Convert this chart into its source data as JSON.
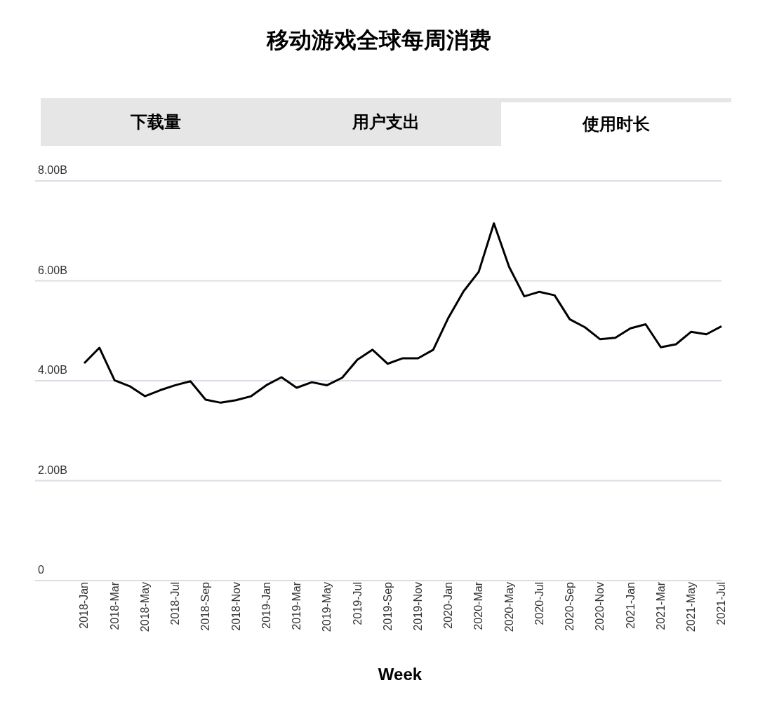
{
  "chart_data": {
    "type": "line",
    "title": "移动游戏全球每周消费",
    "xlabel": "Week",
    "annotations": [
      "下载量",
      "用户支出",
      "使用时长"
    ],
    "categories": [
      "2018-Jan",
      null,
      "2018-Mar",
      null,
      "2018-May",
      null,
      "2018-Jul",
      null,
      "2018-Sep",
      null,
      "2018-Nov",
      null,
      "2019-Jan",
      null,
      "2019-Mar",
      null,
      "2019-May",
      null,
      "2019-Jul",
      null,
      "2019-Sep",
      null,
      "2019-Nov",
      null,
      "2020-Jan",
      null,
      "2020-Mar",
      null,
      "2020-May",
      null,
      "2020-Jul",
      null,
      "2020-Sep",
      null,
      "2020-Nov",
      null,
      "2021-Jan",
      null,
      "2021-Mar",
      null,
      "2021-May",
      null,
      "2021-Jul"
    ],
    "series": [
      {
        "color": "#000000",
        "values": [
          4.35,
          4.66,
          4.01,
          3.89,
          3.69,
          3.81,
          3.91,
          3.99,
          3.62,
          3.56,
          3.61,
          3.69,
          3.91,
          4.07,
          3.86,
          3.97,
          3.91,
          4.06,
          4.42,
          4.62,
          4.34,
          4.45,
          4.45,
          4.62,
          5.26,
          5.79,
          6.18,
          7.15,
          6.28,
          5.69,
          5.78,
          5.71,
          5.23,
          5.07,
          4.83,
          4.86,
          5.05,
          5.13,
          4.67,
          4.73,
          4.98,
          4.93,
          5.09
        ]
      }
    ],
    "ylim": [
      0,
      8
    ],
    "yticks": [
      {
        "value": 0,
        "label": "0"
      },
      {
        "value": 2,
        "label": "2.00B"
      },
      {
        "value": 4,
        "label": "4.00B"
      },
      {
        "value": 6,
        "label": "6.00B"
      },
      {
        "value": 8,
        "label": "8.00B"
      }
    ],
    "grid": "y",
    "legend": false,
    "marker": "none",
    "line_style": "solid"
  }
}
